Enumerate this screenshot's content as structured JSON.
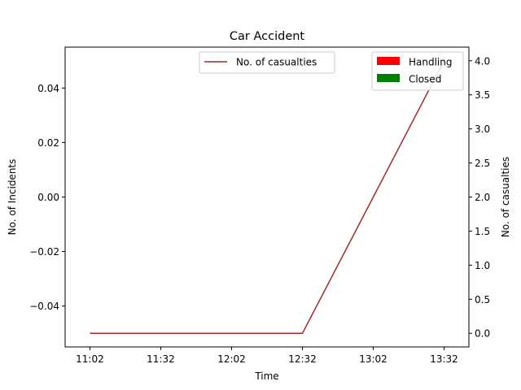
{
  "chart_data": {
    "type": "line",
    "title": "Car Accident",
    "xlabel": "Time",
    "ylabel_left": "No. of Incidents",
    "ylabel_right": "No. of casualties",
    "x_categories": [
      "11:02",
      "11:32",
      "12:02",
      "12:32",
      "13:02",
      "13:32"
    ],
    "left_axis": {
      "ylim": [
        -0.055,
        0.055
      ],
      "ticks": [
        -0.04,
        -0.02,
        0.0,
        0.02,
        0.04
      ],
      "tick_labels": [
        "−0.04",
        "−0.02",
        "0.00",
        "0.02",
        "0.04"
      ]
    },
    "right_axis": {
      "ylim": [
        -0.2,
        4.2
      ],
      "ticks": [
        0.0,
        0.5,
        1.0,
        1.5,
        2.0,
        2.5,
        3.0,
        3.5,
        4.0
      ],
      "tick_labels": [
        "0.0",
        "0.5",
        "1.0",
        "1.5",
        "2.0",
        "2.5",
        "3.0",
        "3.5",
        "4.0"
      ]
    },
    "xlim": [
      -0.35,
      5.35
    ],
    "series": [
      {
        "name": "No. of casualties",
        "axis": "right",
        "color": "#a52a2a",
        "x": [
          0,
          1,
          2,
          3,
          4,
          5
        ],
        "values": [
          0,
          0,
          0,
          0,
          2,
          4
        ]
      }
    ],
    "bar_legend": [
      {
        "name": "Handling",
        "color": "#ff0000"
      },
      {
        "name": "Closed",
        "color": "#008000"
      }
    ],
    "legend_line_position": "upper-center",
    "legend_bar_position": "upper-right",
    "grid": false
  }
}
